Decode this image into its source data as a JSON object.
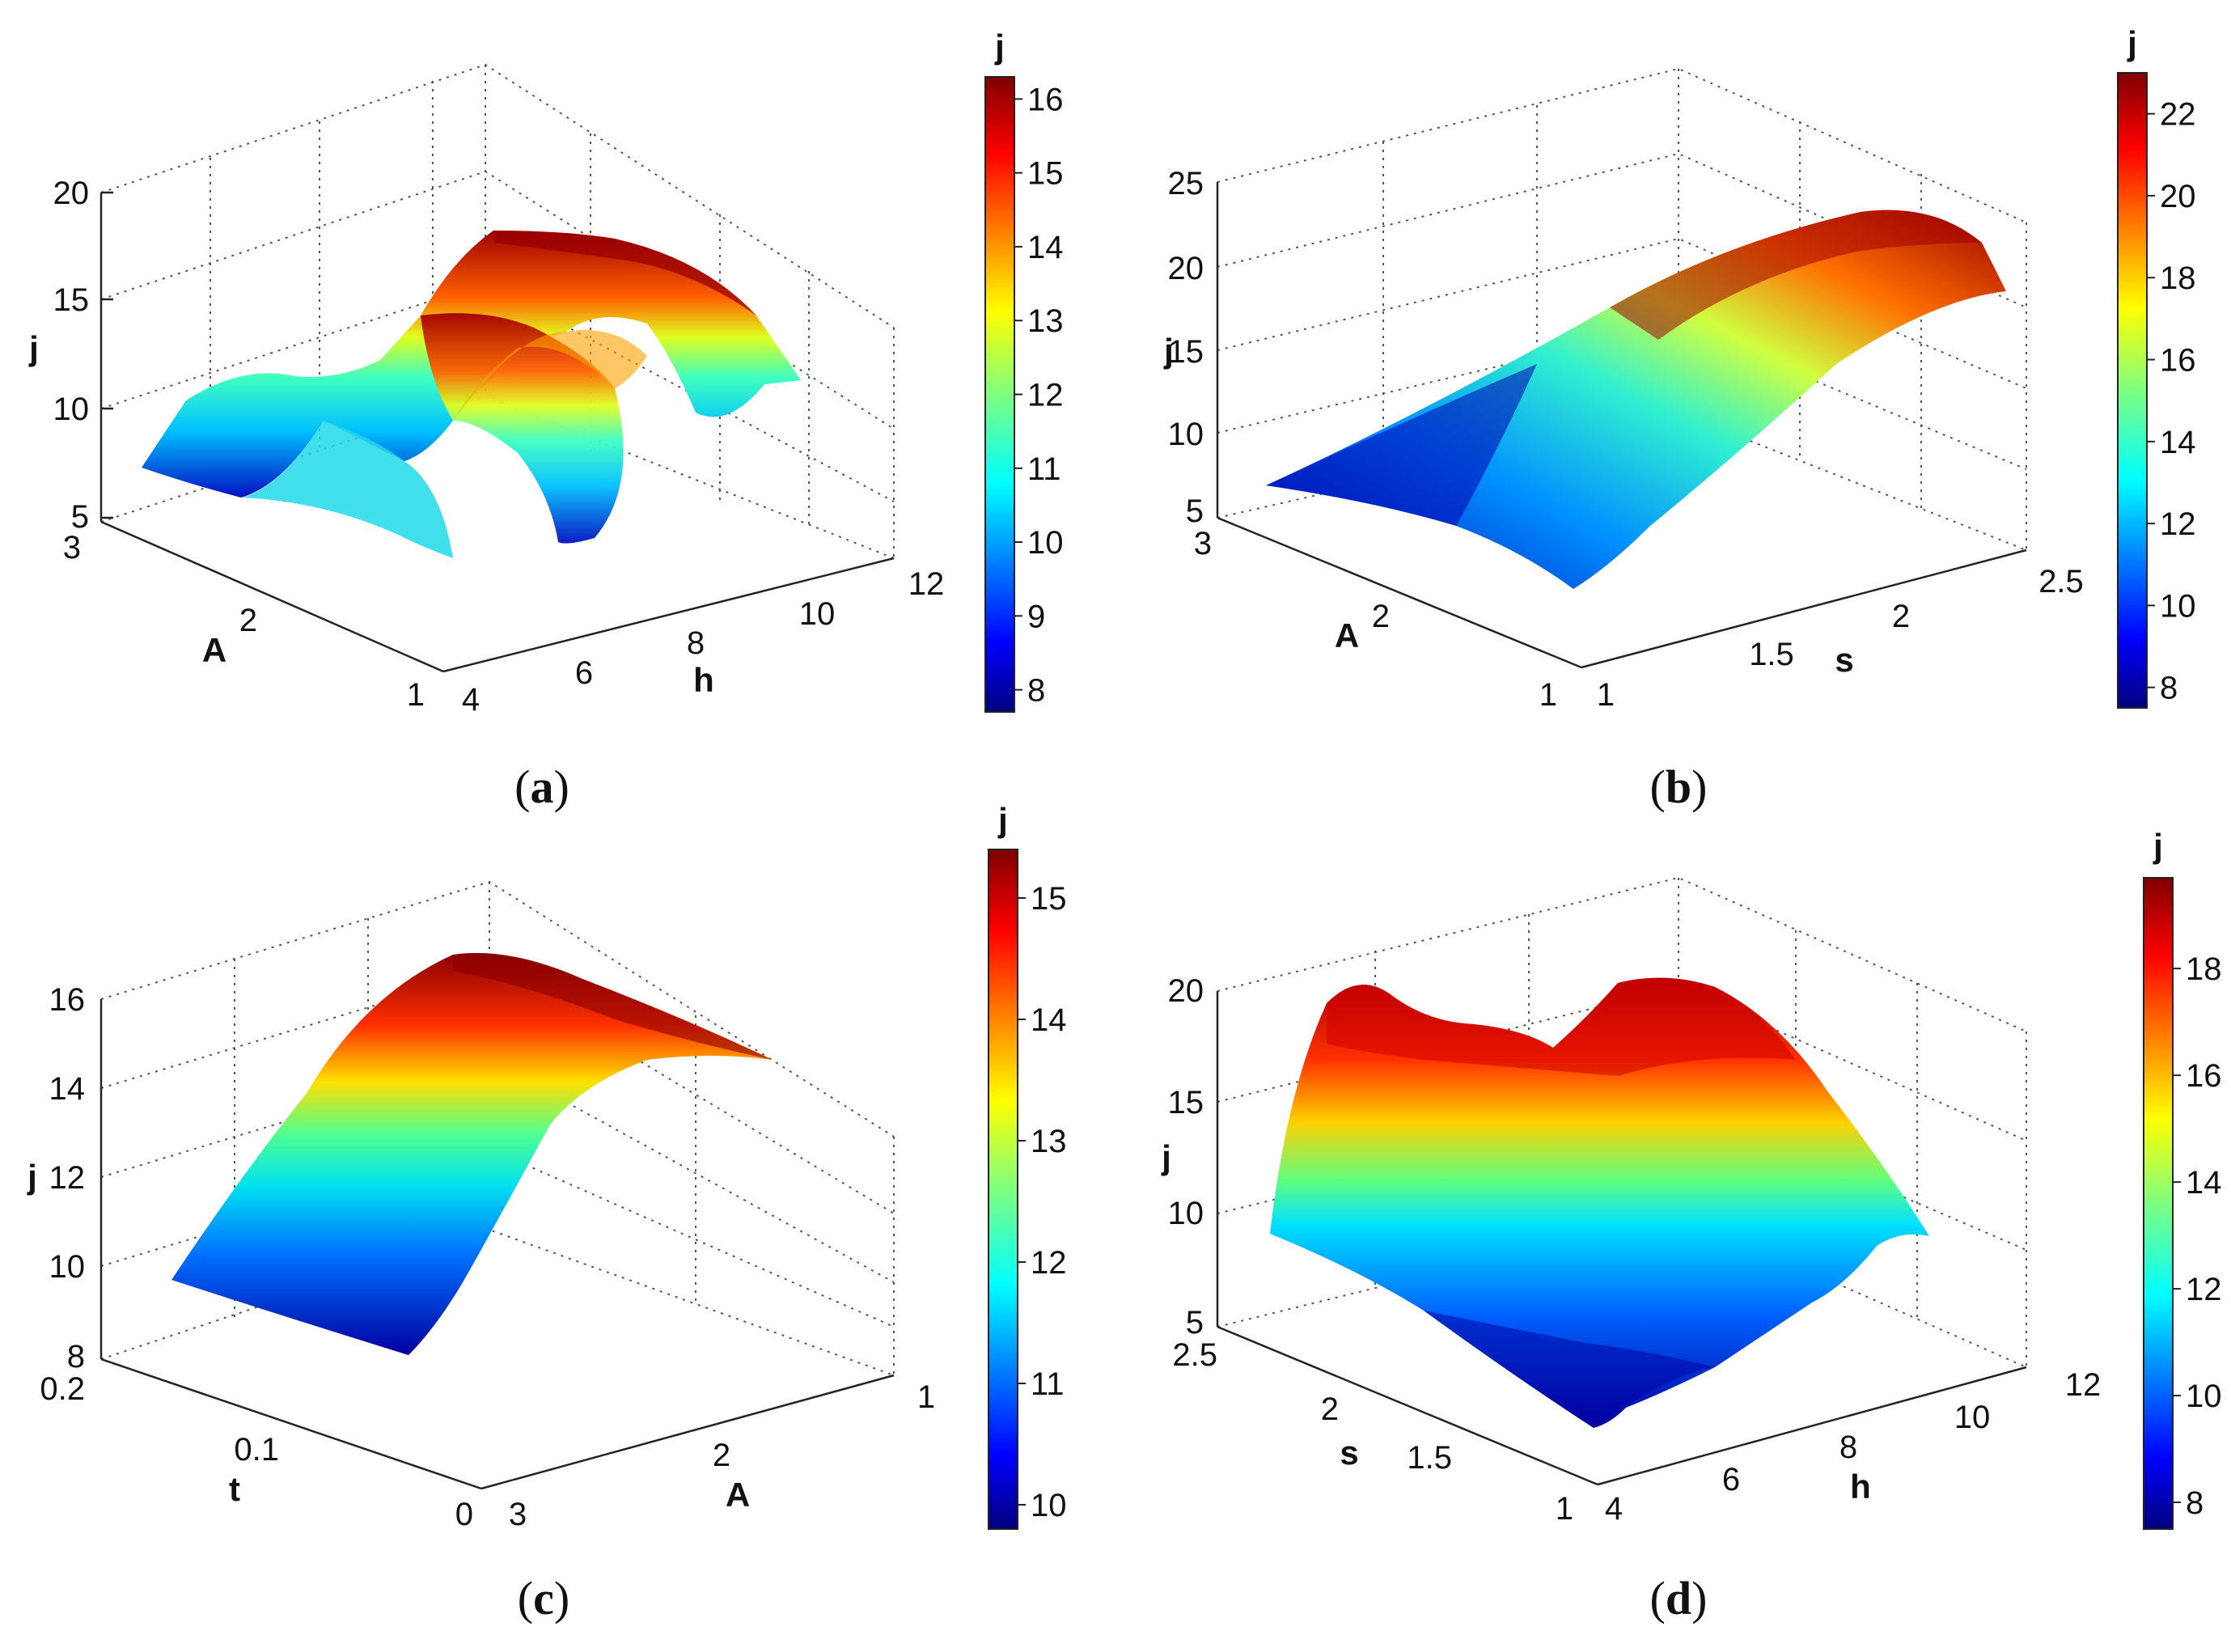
{
  "chart_data": [
    {
      "type": "surface",
      "panel": "(a)",
      "zlabel": "j",
      "xlabel": "A",
      "ylabel": "h",
      "zlim": [
        5,
        20
      ],
      "z_ticks": [
        "5",
        "10",
        "15",
        "20"
      ],
      "x_ticks": [
        "3",
        "2",
        "1"
      ],
      "y_ticks": [
        "4",
        "6",
        "8",
        "10",
        "12"
      ],
      "colorbar": {
        "title": "j",
        "range": [
          7.7,
          16.3
        ],
        "ticks": [
          "8",
          "9",
          "10",
          "11",
          "12",
          "13",
          "14",
          "15",
          "16"
        ]
      },
      "grid": true
    },
    {
      "type": "surface",
      "panel": "(b)",
      "zlabel": "j",
      "xlabel": "A",
      "ylabel": "s",
      "zlim": [
        5,
        25
      ],
      "z_ticks": [
        "5",
        "10",
        "15",
        "20",
        "25"
      ],
      "x_ticks": [
        "3",
        "2",
        "1"
      ],
      "y_ticks": [
        "1",
        "1.5",
        "2",
        "2.5"
      ],
      "colorbar": {
        "title": "j",
        "range": [
          7.5,
          23
        ],
        "ticks": [
          "8",
          "10",
          "12",
          "14",
          "16",
          "18",
          "20",
          "22"
        ]
      },
      "grid": true
    },
    {
      "type": "surface",
      "panel": "(c)",
      "zlabel": "j",
      "xlabel": "t",
      "ylabel": "A",
      "zlim": [
        8,
        16
      ],
      "z_ticks": [
        "8",
        "10",
        "12",
        "14",
        "16"
      ],
      "x_ticks": [
        "0.2",
        "0.1",
        "0"
      ],
      "y_ticks": [
        "3",
        "2",
        "1"
      ],
      "colorbar": {
        "title": "j",
        "range": [
          9.8,
          15.4
        ],
        "ticks": [
          "10",
          "11",
          "12",
          "13",
          "14",
          "15"
        ]
      },
      "grid": true
    },
    {
      "type": "surface",
      "panel": "(d)",
      "zlabel": "j",
      "xlabel": "s",
      "ylabel": "h",
      "zlim": [
        5,
        20
      ],
      "z_ticks": [
        "5",
        "10",
        "15",
        "20"
      ],
      "x_ticks": [
        "2.5",
        "2",
        "1.5",
        "1"
      ],
      "y_ticks": [
        "4",
        "6",
        "8",
        "10",
        "12"
      ],
      "colorbar": {
        "title": "j",
        "range": [
          7.5,
          19.7
        ],
        "ticks": [
          "8",
          "10",
          "12",
          "14",
          "16",
          "18"
        ]
      },
      "grid": true
    }
  ],
  "panels": {
    "a": {
      "label": "(a)",
      "letter": "a"
    },
    "b": {
      "label": "(b)",
      "letter": "b"
    },
    "c": {
      "label": "(c)",
      "letter": "c"
    },
    "d": {
      "label": "(d)",
      "letter": "d"
    }
  },
  "colormap": [
    "#00007f",
    "#0000ff",
    "#007fff",
    "#00ffff",
    "#7fff7f",
    "#ffff00",
    "#ff7f00",
    "#ff0000",
    "#7f0000"
  ]
}
